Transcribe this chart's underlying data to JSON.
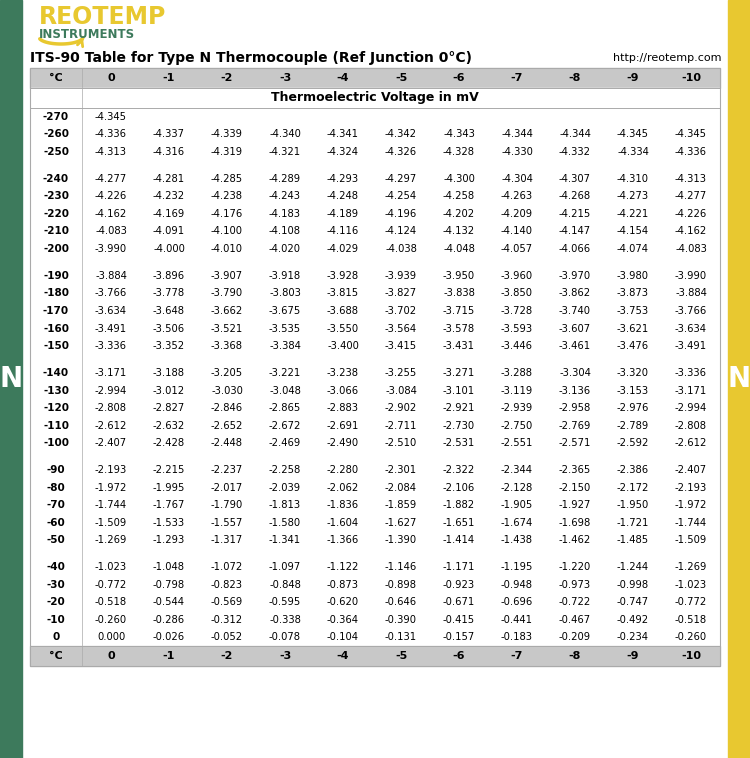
{
  "title": "ITS-90 Table for Type N Thermocouple (Ref Junction 0°C)",
  "url": "http://reotemp.com",
  "subtitle": "Thermoelectric Voltage in mV",
  "header": [
    "°C",
    "0",
    "-1",
    "-2",
    "-3",
    "-4",
    "-5",
    "-6",
    "-7",
    "-8",
    "-9",
    "-10"
  ],
  "rows": [
    [
      "-270",
      "-4.345",
      "",
      "",
      "",
      "",
      "",
      "",
      "",
      "",
      "",
      ""
    ],
    [
      "-260",
      "-4.336",
      "-4.337",
      "-4.339",
      "-4.340",
      "-4.341",
      "-4.342",
      "-4.343",
      "-4.344",
      "-4.344",
      "-4.345",
      "-4.345"
    ],
    [
      "-250",
      "-4.313",
      "-4.316",
      "-4.319",
      "-4.321",
      "-4.324",
      "-4.326",
      "-4.328",
      "-4.330",
      "-4.332",
      "-4.334",
      "-4.336"
    ],
    [
      "-240",
      "-4.277",
      "-4.281",
      "-4.285",
      "-4.289",
      "-4.293",
      "-4.297",
      "-4.300",
      "-4.304",
      "-4.307",
      "-4.310",
      "-4.313"
    ],
    [
      "-230",
      "-4.226",
      "-4.232",
      "-4.238",
      "-4.243",
      "-4.248",
      "-4.254",
      "-4.258",
      "-4.263",
      "-4.268",
      "-4.273",
      "-4.277"
    ],
    [
      "-220",
      "-4.162",
      "-4.169",
      "-4.176",
      "-4.183",
      "-4.189",
      "-4.196",
      "-4.202",
      "-4.209",
      "-4.215",
      "-4.221",
      "-4.226"
    ],
    [
      "-210",
      "-4.083",
      "-4.091",
      "-4.100",
      "-4.108",
      "-4.116",
      "-4.124",
      "-4.132",
      "-4.140",
      "-4.147",
      "-4.154",
      "-4.162"
    ],
    [
      "-200",
      "-3.990",
      "-4.000",
      "-4.010",
      "-4.020",
      "-4.029",
      "-4.038",
      "-4.048",
      "-4.057",
      "-4.066",
      "-4.074",
      "-4.083"
    ],
    [
      "-190",
      "-3.884",
      "-3.896",
      "-3.907",
      "-3.918",
      "-3.928",
      "-3.939",
      "-3.950",
      "-3.960",
      "-3.970",
      "-3.980",
      "-3.990"
    ],
    [
      "-180",
      "-3.766",
      "-3.778",
      "-3.790",
      "-3.803",
      "-3.815",
      "-3.827",
      "-3.838",
      "-3.850",
      "-3.862",
      "-3.873",
      "-3.884"
    ],
    [
      "-170",
      "-3.634",
      "-3.648",
      "-3.662",
      "-3.675",
      "-3.688",
      "-3.702",
      "-3.715",
      "-3.728",
      "-3.740",
      "-3.753",
      "-3.766"
    ],
    [
      "-160",
      "-3.491",
      "-3.506",
      "-3.521",
      "-3.535",
      "-3.550",
      "-3.564",
      "-3.578",
      "-3.593",
      "-3.607",
      "-3.621",
      "-3.634"
    ],
    [
      "-150",
      "-3.336",
      "-3.352",
      "-3.368",
      "-3.384",
      "-3.400",
      "-3.415",
      "-3.431",
      "-3.446",
      "-3.461",
      "-3.476",
      "-3.491"
    ],
    [
      "-140",
      "-3.171",
      "-3.188",
      "-3.205",
      "-3.221",
      "-3.238",
      "-3.255",
      "-3.271",
      "-3.288",
      "-3.304",
      "-3.320",
      "-3.336"
    ],
    [
      "-130",
      "-2.994",
      "-3.012",
      "-3.030",
      "-3.048",
      "-3.066",
      "-3.084",
      "-3.101",
      "-3.119",
      "-3.136",
      "-3.153",
      "-3.171"
    ],
    [
      "-120",
      "-2.808",
      "-2.827",
      "-2.846",
      "-2.865",
      "-2.883",
      "-2.902",
      "-2.921",
      "-2.939",
      "-2.958",
      "-2.976",
      "-2.994"
    ],
    [
      "-110",
      "-2.612",
      "-2.632",
      "-2.652",
      "-2.672",
      "-2.691",
      "-2.711",
      "-2.730",
      "-2.750",
      "-2.769",
      "-2.789",
      "-2.808"
    ],
    [
      "-100",
      "-2.407",
      "-2.428",
      "-2.448",
      "-2.469",
      "-2.490",
      "-2.510",
      "-2.531",
      "-2.551",
      "-2.571",
      "-2.592",
      "-2.612"
    ],
    [
      "-90",
      "-2.193",
      "-2.215",
      "-2.237",
      "-2.258",
      "-2.280",
      "-2.301",
      "-2.322",
      "-2.344",
      "-2.365",
      "-2.386",
      "-2.407"
    ],
    [
      "-80",
      "-1.972",
      "-1.995",
      "-2.017",
      "-2.039",
      "-2.062",
      "-2.084",
      "-2.106",
      "-2.128",
      "-2.150",
      "-2.172",
      "-2.193"
    ],
    [
      "-70",
      "-1.744",
      "-1.767",
      "-1.790",
      "-1.813",
      "-1.836",
      "-1.859",
      "-1.882",
      "-1.905",
      "-1.927",
      "-1.950",
      "-1.972"
    ],
    [
      "-60",
      "-1.509",
      "-1.533",
      "-1.557",
      "-1.580",
      "-1.604",
      "-1.627",
      "-1.651",
      "-1.674",
      "-1.698",
      "-1.721",
      "-1.744"
    ],
    [
      "-50",
      "-1.269",
      "-1.293",
      "-1.317",
      "-1.341",
      "-1.366",
      "-1.390",
      "-1.414",
      "-1.438",
      "-1.462",
      "-1.485",
      "-1.509"
    ],
    [
      "-40",
      "-1.023",
      "-1.048",
      "-1.072",
      "-1.097",
      "-1.122",
      "-1.146",
      "-1.171",
      "-1.195",
      "-1.220",
      "-1.244",
      "-1.269"
    ],
    [
      "-30",
      "-0.772",
      "-0.798",
      "-0.823",
      "-0.848",
      "-0.873",
      "-0.898",
      "-0.923",
      "-0.948",
      "-0.973",
      "-0.998",
      "-1.023"
    ],
    [
      "-20",
      "-0.518",
      "-0.544",
      "-0.569",
      "-0.595",
      "-0.620",
      "-0.646",
      "-0.671",
      "-0.696",
      "-0.722",
      "-0.747",
      "-0.772"
    ],
    [
      "-10",
      "-0.260",
      "-0.286",
      "-0.312",
      "-0.338",
      "-0.364",
      "-0.390",
      "-0.415",
      "-0.441",
      "-0.467",
      "-0.492",
      "-0.518"
    ],
    [
      "0",
      "0.000",
      "-0.026",
      "-0.052",
      "-0.078",
      "-0.104",
      "-0.131",
      "-0.157",
      "-0.183",
      "-0.209",
      "-0.234",
      "-0.260"
    ]
  ],
  "group_separators_after": [
    2,
    7,
    12,
    17,
    22
  ],
  "header_bg": "#c8c8c8",
  "left_bar_color": "#3d7a5c",
  "right_bar_color": "#e8c830",
  "logo_color": "#e8c830",
  "logo_instruments_color": "#3d7a5c"
}
